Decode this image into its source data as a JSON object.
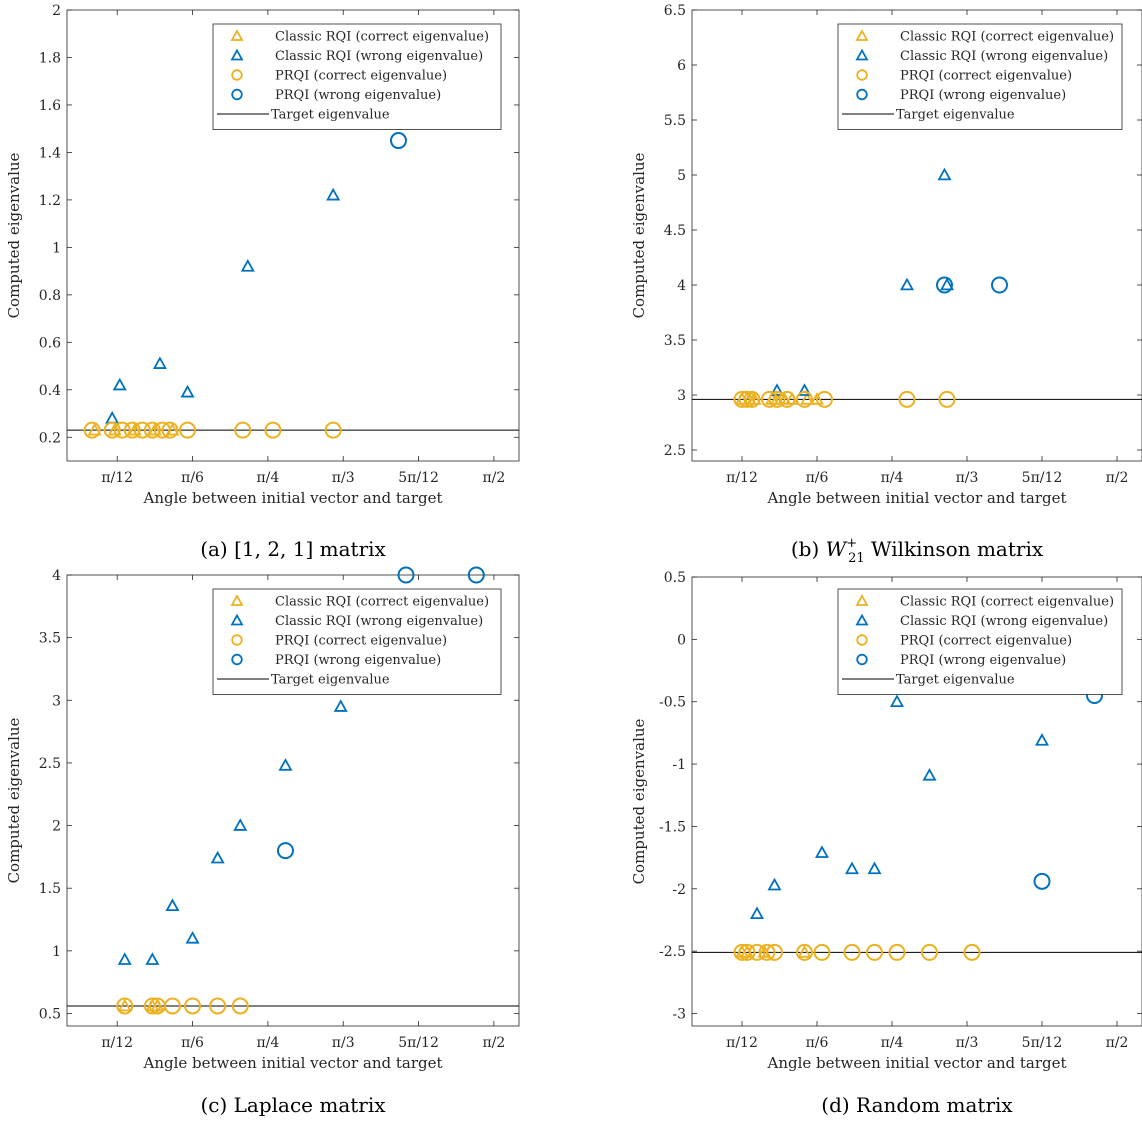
{
  "colors": {
    "correct": "#EDB120",
    "wrong": "#0072BD",
    "axis": "#262626",
    "target": "#000000"
  },
  "legend_labels": [
    "Classic RQI (correct eigenvalue)",
    "Classic RQI (wrong eigenvalue)",
    "PRQI (correct eigenvalue)",
    "PRQI (wrong eigenvalue)",
    "Target eigenvalue"
  ],
  "x_tick_labels": [
    "π/12",
    "π/6",
    "π/4",
    "π/3",
    "5π/12",
    "π/2"
  ],
  "chart_data": [
    {
      "type": "scatter",
      "caption": "(a) [1, 2, 1] matrix",
      "xlabel": "Angle between initial vector and target",
      "ylabel": "Computed eigenvalue",
      "xlim_deg": [
        5,
        95
      ],
      "ylim": [
        0.1,
        2.0
      ],
      "y_ticks": [
        0.2,
        0.4,
        0.6,
        0.8,
        1,
        1.2,
        1.4,
        1.6,
        1.8,
        2
      ],
      "y_tick_labels": [
        "0.2",
        "0.4",
        "0.6",
        "0.8",
        "1",
        "1.2",
        "1.4",
        "1.6",
        "1.8",
        "2"
      ],
      "target": 0.23,
      "series": [
        {
          "name": "Classic RQI (correct eigenvalue)",
          "marker": "triangle",
          "color": "correct",
          "x_deg": [
            10.5,
            14.5,
            18.5,
            22.5,
            26.0
          ],
          "y": [
            0.23,
            0.23,
            0.23,
            0.23,
            0.23
          ]
        },
        {
          "name": "Classic RQI (wrong eigenvalue)",
          "marker": "triangle",
          "color": "wrong",
          "x_deg": [
            14.0,
            15.5,
            23.5,
            29.0,
            41.0,
            58.0
          ],
          "y": [
            0.28,
            0.42,
            0.51,
            0.39,
            0.92,
            1.22
          ]
        },
        {
          "name": "PRQI (correct eigenvalue)",
          "marker": "circle",
          "color": "correct",
          "x_deg": [
            10.0,
            14.0,
            16.0,
            18.0,
            20.0,
            22.0,
            24.0,
            25.5,
            29.0,
            40.0,
            46.0,
            58.0
          ],
          "y": [
            0.23,
            0.23,
            0.23,
            0.23,
            0.23,
            0.23,
            0.23,
            0.23,
            0.23,
            0.23,
            0.23,
            0.23
          ]
        },
        {
          "name": "PRQI (wrong eigenvalue)",
          "marker": "circle",
          "color": "wrong",
          "x_deg": [
            71.0
          ],
          "y": [
            1.45
          ]
        }
      ]
    },
    {
      "type": "scatter",
      "caption": "(b) W21+ Wilkinson matrix",
      "caption_main": "(b) ",
      "caption_w": "W",
      "caption_sup": "+",
      "caption_sub": "21",
      "caption_rest": " Wilkinson matrix",
      "xlabel": "Angle between initial vector and target",
      "ylabel": "Computed eigenvalue",
      "xlim_deg": [
        5,
        95
      ],
      "ylim": [
        2.4,
        6.5
      ],
      "y_ticks": [
        2.5,
        3,
        3.5,
        4,
        4.5,
        5,
        5.5,
        6,
        6.5
      ],
      "y_tick_labels": [
        "2.5",
        "3",
        "3.5",
        "4",
        "4.5",
        "5",
        "5.5",
        "6",
        "6.5"
      ],
      "target": 2.96,
      "series": [
        {
          "name": "Classic RQI (correct eigenvalue)",
          "marker": "triangle",
          "color": "correct",
          "x_deg": [
            15.0,
            16.5,
            17.5,
            21.0,
            22.0,
            23.5,
            25.0,
            28.0,
            30.0
          ],
          "y": [
            2.96,
            2.96,
            2.96,
            2.96,
            2.96,
            2.96,
            2.96,
            2.96,
            2.96
          ]
        },
        {
          "name": "Classic RQI (wrong eigenvalue)",
          "marker": "triangle",
          "color": "wrong",
          "x_deg": [
            22.0,
            27.5,
            48.0,
            55.5,
            56.0
          ],
          "y": [
            3.04,
            3.04,
            4.0,
            5.0,
            4.0
          ]
        },
        {
          "name": "PRQI (correct eigenvalue)",
          "marker": "circle",
          "color": "correct",
          "x_deg": [
            15.0,
            16.0,
            17.0,
            20.5,
            22.0,
            24.0,
            27.5,
            31.5,
            48.0,
            56.0
          ],
          "y": [
            2.96,
            2.96,
            2.96,
            2.96,
            2.96,
            2.96,
            2.96,
            2.96,
            2.96,
            2.96
          ]
        },
        {
          "name": "PRQI (wrong eigenvalue)",
          "marker": "circle",
          "color": "wrong",
          "x_deg": [
            55.5,
            66.5
          ],
          "y": [
            4.0,
            4.0
          ]
        }
      ]
    },
    {
      "type": "scatter",
      "caption": "(c) Laplace matrix",
      "xlabel": "Angle between initial vector and target",
      "ylabel": "Computed eigenvalue",
      "xlim_deg": [
        5,
        95
      ],
      "ylim": [
        0.4,
        4.0
      ],
      "y_ticks": [
        0.5,
        1,
        1.5,
        2,
        2.5,
        3,
        3.5,
        4
      ],
      "y_tick_labels": [
        "0.5",
        "1",
        "1.5",
        "2",
        "2.5",
        "3",
        "3.5",
        "4"
      ],
      "target": 0.56,
      "series": [
        {
          "name": "Classic RQI (correct eigenvalue)",
          "marker": "triangle",
          "color": "correct",
          "x_deg": [
            16.5,
            22.0,
            23.0
          ],
          "y": [
            0.56,
            0.56,
            0.56
          ]
        },
        {
          "name": "Classic RQI (wrong eigenvalue)",
          "marker": "triangle",
          "color": "wrong",
          "x_deg": [
            16.5,
            22.0,
            26.0,
            30.0,
            35.0,
            39.5,
            48.5,
            59.5
          ],
          "y": [
            0.93,
            0.93,
            1.36,
            1.1,
            1.74,
            2.0,
            2.48,
            2.95
          ]
        },
        {
          "name": "PRQI (correct eigenvalue)",
          "marker": "circle",
          "color": "correct",
          "x_deg": [
            16.5,
            22.0,
            23.0,
            26.0,
            30.0,
            35.0,
            39.5
          ],
          "y": [
            0.56,
            0.56,
            0.56,
            0.56,
            0.56,
            0.56,
            0.56
          ]
        },
        {
          "name": "PRQI (wrong eigenvalue)",
          "marker": "circle",
          "color": "wrong",
          "x_deg": [
            48.5,
            72.5,
            86.5
          ],
          "y": [
            1.8,
            4.0,
            4.0
          ]
        }
      ]
    },
    {
      "type": "scatter",
      "caption": "(d) Random matrix",
      "xlabel": "Angle between initial vector and target",
      "ylabel": "Computed eigenvalue",
      "xlim_deg": [
        5,
        95
      ],
      "ylim": [
        -3.1,
        0.5
      ],
      "y_ticks": [
        -3,
        -2.5,
        -2,
        -1.5,
        -1,
        -0.5,
        0,
        0.5
      ],
      "y_tick_labels": [
        "-3",
        "-2.5",
        "-2",
        "-1.5",
        "-1",
        "-0.5",
        "0",
        "0.5"
      ],
      "target": -2.51,
      "series": [
        {
          "name": "Classic RQI (correct eigenvalue)",
          "marker": "triangle",
          "color": "correct",
          "x_deg": [
            15.0,
            16.0,
            19.5,
            27.5
          ],
          "y": [
            -2.51,
            -2.51,
            -2.51,
            -2.51
          ]
        },
        {
          "name": "Classic RQI (wrong eigenvalue)",
          "marker": "triangle",
          "color": "wrong",
          "x_deg": [
            18.0,
            21.5,
            31.0,
            37.0,
            41.5,
            46.0,
            52.5,
            75.0
          ],
          "y": [
            -2.2,
            -1.97,
            -1.71,
            -1.84,
            -1.84,
            -0.5,
            -1.09,
            -0.81
          ]
        },
        {
          "name": "PRQI (correct eigenvalue)",
          "marker": "circle",
          "color": "correct",
          "x_deg": [
            15.0,
            16.0,
            18.0,
            20.0,
            21.5,
            27.5,
            31.0,
            37.0,
            41.5,
            46.0,
            52.5,
            61.0
          ],
          "y": [
            -2.51,
            -2.51,
            -2.51,
            -2.51,
            -2.51,
            -2.51,
            -2.51,
            -2.51,
            -2.51,
            -2.51,
            -2.51,
            -2.51
          ]
        },
        {
          "name": "PRQI (wrong eigenvalue)",
          "marker": "circle",
          "color": "wrong",
          "x_deg": [
            75.0,
            85.5
          ],
          "y": [
            -1.94,
            -0.45
          ]
        }
      ]
    }
  ]
}
